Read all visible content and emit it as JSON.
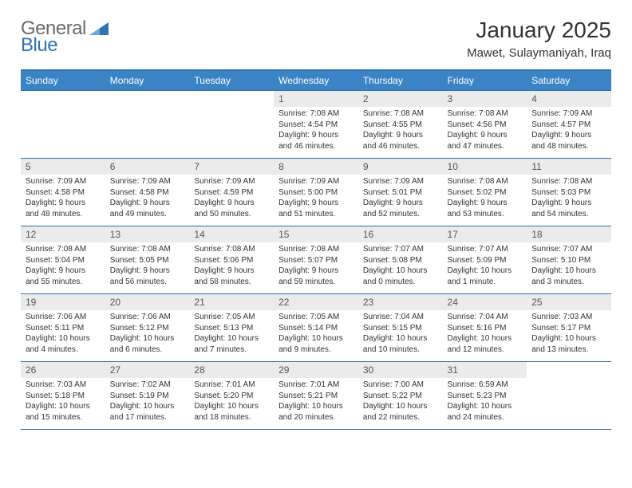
{
  "brand": {
    "part1": "General",
    "part2": "Blue"
  },
  "title": "January 2025",
  "location": "Mawet, Sulaymaniyah, Iraq",
  "colors": {
    "header_bg": "#3a83c5",
    "header_border": "#2f73b5",
    "cell_border": "#2f73b5",
    "daynum_bg": "#ebebeb",
    "text": "#333333",
    "brand_gray": "#6a6a6a",
    "brand_blue": "#2f73b5"
  },
  "day_headers": [
    "Sunday",
    "Monday",
    "Tuesday",
    "Wednesday",
    "Thursday",
    "Friday",
    "Saturday"
  ],
  "weeks": [
    [
      {
        "blank": true
      },
      {
        "blank": true
      },
      {
        "blank": true
      },
      {
        "n": "1",
        "sunrise": "7:08 AM",
        "sunset": "4:54 PM",
        "daylight": "9 hours and 46 minutes."
      },
      {
        "n": "2",
        "sunrise": "7:08 AM",
        "sunset": "4:55 PM",
        "daylight": "9 hours and 46 minutes."
      },
      {
        "n": "3",
        "sunrise": "7:08 AM",
        "sunset": "4:56 PM",
        "daylight": "9 hours and 47 minutes."
      },
      {
        "n": "4",
        "sunrise": "7:09 AM",
        "sunset": "4:57 PM",
        "daylight": "9 hours and 48 minutes."
      }
    ],
    [
      {
        "n": "5",
        "sunrise": "7:09 AM",
        "sunset": "4:58 PM",
        "daylight": "9 hours and 48 minutes."
      },
      {
        "n": "6",
        "sunrise": "7:09 AM",
        "sunset": "4:58 PM",
        "daylight": "9 hours and 49 minutes."
      },
      {
        "n": "7",
        "sunrise": "7:09 AM",
        "sunset": "4:59 PM",
        "daylight": "9 hours and 50 minutes."
      },
      {
        "n": "8",
        "sunrise": "7:09 AM",
        "sunset": "5:00 PM",
        "daylight": "9 hours and 51 minutes."
      },
      {
        "n": "9",
        "sunrise": "7:09 AM",
        "sunset": "5:01 PM",
        "daylight": "9 hours and 52 minutes."
      },
      {
        "n": "10",
        "sunrise": "7:08 AM",
        "sunset": "5:02 PM",
        "daylight": "9 hours and 53 minutes."
      },
      {
        "n": "11",
        "sunrise": "7:08 AM",
        "sunset": "5:03 PM",
        "daylight": "9 hours and 54 minutes."
      }
    ],
    [
      {
        "n": "12",
        "sunrise": "7:08 AM",
        "sunset": "5:04 PM",
        "daylight": "9 hours and 55 minutes."
      },
      {
        "n": "13",
        "sunrise": "7:08 AM",
        "sunset": "5:05 PM",
        "daylight": "9 hours and 56 minutes."
      },
      {
        "n": "14",
        "sunrise": "7:08 AM",
        "sunset": "5:06 PM",
        "daylight": "9 hours and 58 minutes."
      },
      {
        "n": "15",
        "sunrise": "7:08 AM",
        "sunset": "5:07 PM",
        "daylight": "9 hours and 59 minutes."
      },
      {
        "n": "16",
        "sunrise": "7:07 AM",
        "sunset": "5:08 PM",
        "daylight": "10 hours and 0 minutes."
      },
      {
        "n": "17",
        "sunrise": "7:07 AM",
        "sunset": "5:09 PM",
        "daylight": "10 hours and 1 minute."
      },
      {
        "n": "18",
        "sunrise": "7:07 AM",
        "sunset": "5:10 PM",
        "daylight": "10 hours and 3 minutes."
      }
    ],
    [
      {
        "n": "19",
        "sunrise": "7:06 AM",
        "sunset": "5:11 PM",
        "daylight": "10 hours and 4 minutes."
      },
      {
        "n": "20",
        "sunrise": "7:06 AM",
        "sunset": "5:12 PM",
        "daylight": "10 hours and 6 minutes."
      },
      {
        "n": "21",
        "sunrise": "7:05 AM",
        "sunset": "5:13 PM",
        "daylight": "10 hours and 7 minutes."
      },
      {
        "n": "22",
        "sunrise": "7:05 AM",
        "sunset": "5:14 PM",
        "daylight": "10 hours and 9 minutes."
      },
      {
        "n": "23",
        "sunrise": "7:04 AM",
        "sunset": "5:15 PM",
        "daylight": "10 hours and 10 minutes."
      },
      {
        "n": "24",
        "sunrise": "7:04 AM",
        "sunset": "5:16 PM",
        "daylight": "10 hours and 12 minutes."
      },
      {
        "n": "25",
        "sunrise": "7:03 AM",
        "sunset": "5:17 PM",
        "daylight": "10 hours and 13 minutes."
      }
    ],
    [
      {
        "n": "26",
        "sunrise": "7:03 AM",
        "sunset": "5:18 PM",
        "daylight": "10 hours and 15 minutes."
      },
      {
        "n": "27",
        "sunrise": "7:02 AM",
        "sunset": "5:19 PM",
        "daylight": "10 hours and 17 minutes."
      },
      {
        "n": "28",
        "sunrise": "7:01 AM",
        "sunset": "5:20 PM",
        "daylight": "10 hours and 18 minutes."
      },
      {
        "n": "29",
        "sunrise": "7:01 AM",
        "sunset": "5:21 PM",
        "daylight": "10 hours and 20 minutes."
      },
      {
        "n": "30",
        "sunrise": "7:00 AM",
        "sunset": "5:22 PM",
        "daylight": "10 hours and 22 minutes."
      },
      {
        "n": "31",
        "sunrise": "6:59 AM",
        "sunset": "5:23 PM",
        "daylight": "10 hours and 24 minutes."
      },
      {
        "blank": true
      }
    ]
  ],
  "labels": {
    "sunrise": "Sunrise:",
    "sunset": "Sunset:",
    "daylight": "Daylight:"
  }
}
